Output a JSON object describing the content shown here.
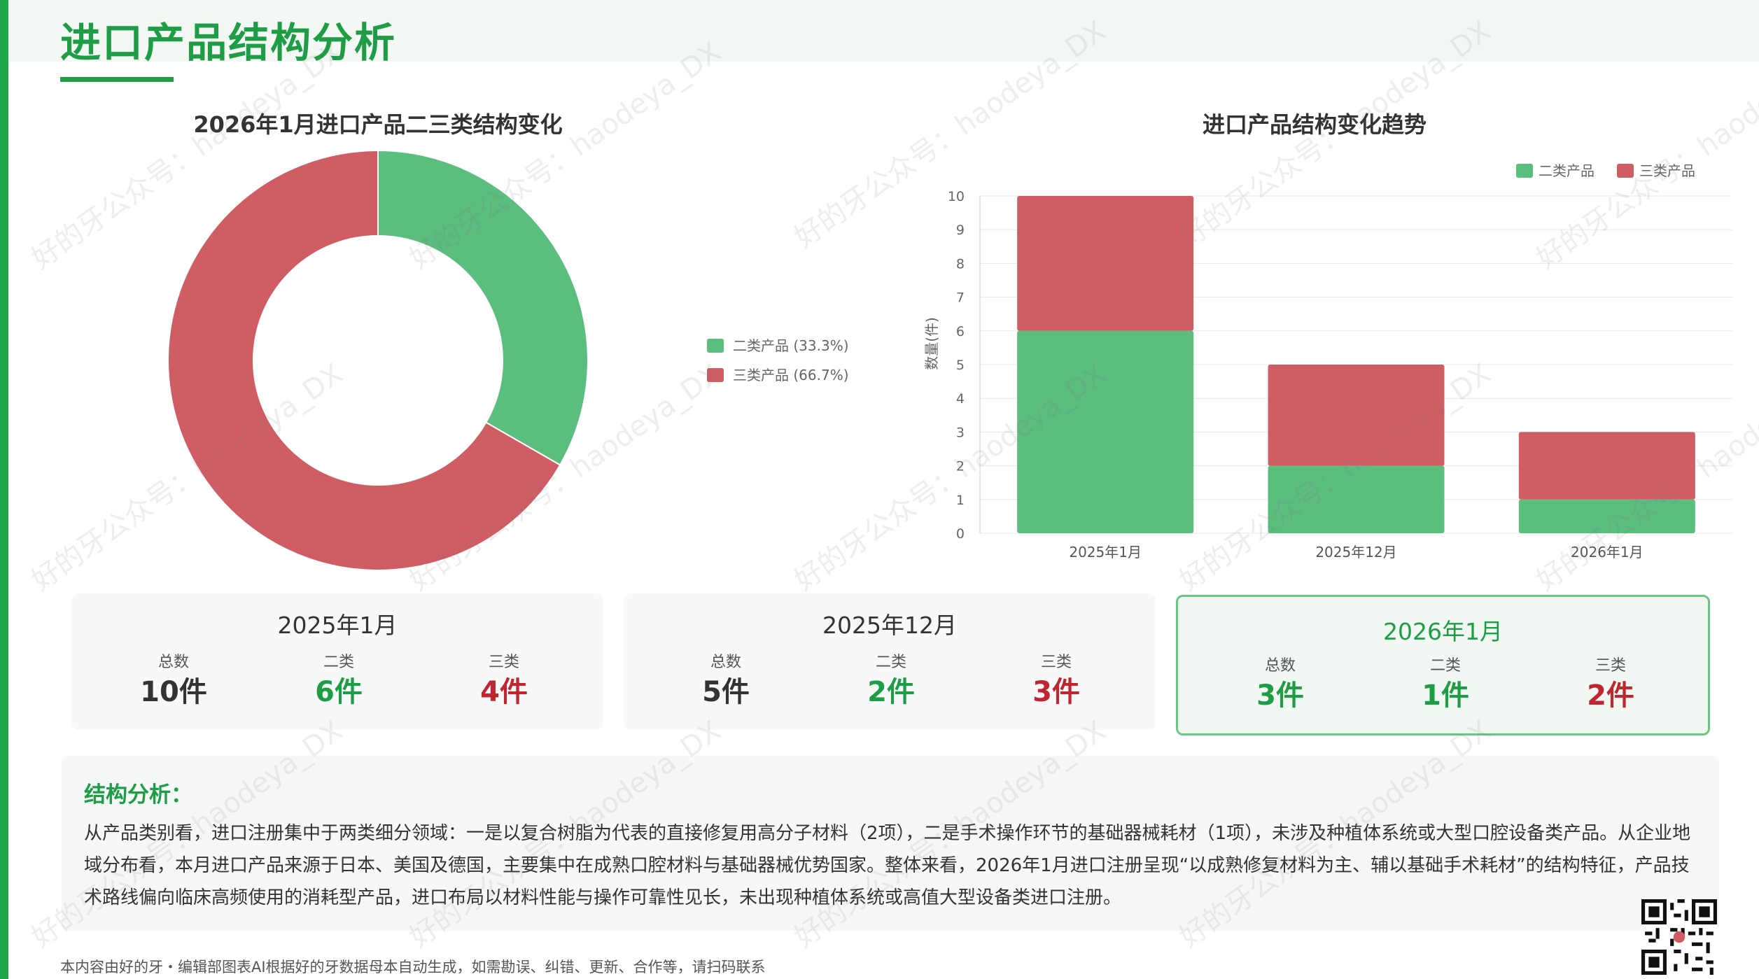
{
  "header": {
    "title": "进口产品结构分析"
  },
  "donut": {
    "title": "2026年1月进口产品二三类结构变化",
    "legend": [
      {
        "label": "二类产品 (33.3%)",
        "color": "#5bbd7e"
      },
      {
        "label": "三类产品 (66.7%)",
        "color": "#d05c64"
      }
    ]
  },
  "bar": {
    "title": "进口产品结构变化趋势",
    "ylabel": "数量(件)",
    "legend": [
      {
        "label": "二类产品",
        "color": "#5bbd7e"
      },
      {
        "label": "三类产品",
        "color": "#d05c64"
      }
    ]
  },
  "chart_data": [
    {
      "type": "pie",
      "title": "2026年1月进口产品二三类结构变化",
      "categories": [
        "二类产品",
        "三类产品"
      ],
      "values": [
        33.3,
        66.7
      ],
      "colors": [
        "#5bbd7e",
        "#d05c64"
      ],
      "legend": "right"
    },
    {
      "type": "bar",
      "stacked": true,
      "title": "进口产品结构变化趋势",
      "xlabel": "",
      "ylabel": "数量(件)",
      "categories": [
        "2025年1月",
        "2025年12月",
        "2026年1月"
      ],
      "series": [
        {
          "name": "二类产品",
          "values": [
            6,
            2,
            1
          ],
          "color": "#5bbd7e"
        },
        {
          "name": "三类产品",
          "values": [
            4,
            3,
            2
          ],
          "color": "#d05c64"
        }
      ],
      "ylim": [
        0,
        10
      ],
      "yticks": [
        0,
        1,
        2,
        3,
        4,
        5,
        6,
        7,
        8,
        9,
        10
      ],
      "grid": true,
      "legend": "top-right"
    }
  ],
  "stats": [
    {
      "title": "2025年1月",
      "total_label": "总数",
      "total": "10件",
      "two_label": "二类",
      "two": "6件",
      "three_label": "三类",
      "three": "4件"
    },
    {
      "title": "2025年12月",
      "total_label": "总数",
      "total": "5件",
      "two_label": "二类",
      "two": "2件",
      "three_label": "三类",
      "three": "3件"
    },
    {
      "title": "2026年1月",
      "total_label": "总数",
      "total": "3件",
      "two_label": "二类",
      "two": "1件",
      "three_label": "三类",
      "three": "2件"
    }
  ],
  "analysis": {
    "title": "结构分析：",
    "body": "从产品类别看，进口注册集中于两类细分领域：一是以复合树脂为代表的直接修复用高分子材料（2项），二是手术操作环节的基础器械耗材（1项），未涉及种植体系统或大型口腔设备类产品。从企业地域分布看，本月进口产品来源于日本、美国及德国，主要集中在成熟口腔材料与基础器械优势国家。整体来看，2026年1月进口注册呈现“以成熟修复材料为主、辅以基础手术耗材”的结构特征，产品技术路线偏向临床高频使用的消耗型产品，进口布局以材料性能与操作可靠性见长，未出现种植体系统或高值大型设备类进口注册。"
  },
  "footer": {
    "note": "本内容由好的牙・编辑部图表AI根据好的牙数据母本自动生成，如需勘误、纠错、更新、合作等，请扫码联系"
  },
  "watermarks": [
    "haodeya_DX",
    "好的牙公众号：haodeya_DX"
  ]
}
